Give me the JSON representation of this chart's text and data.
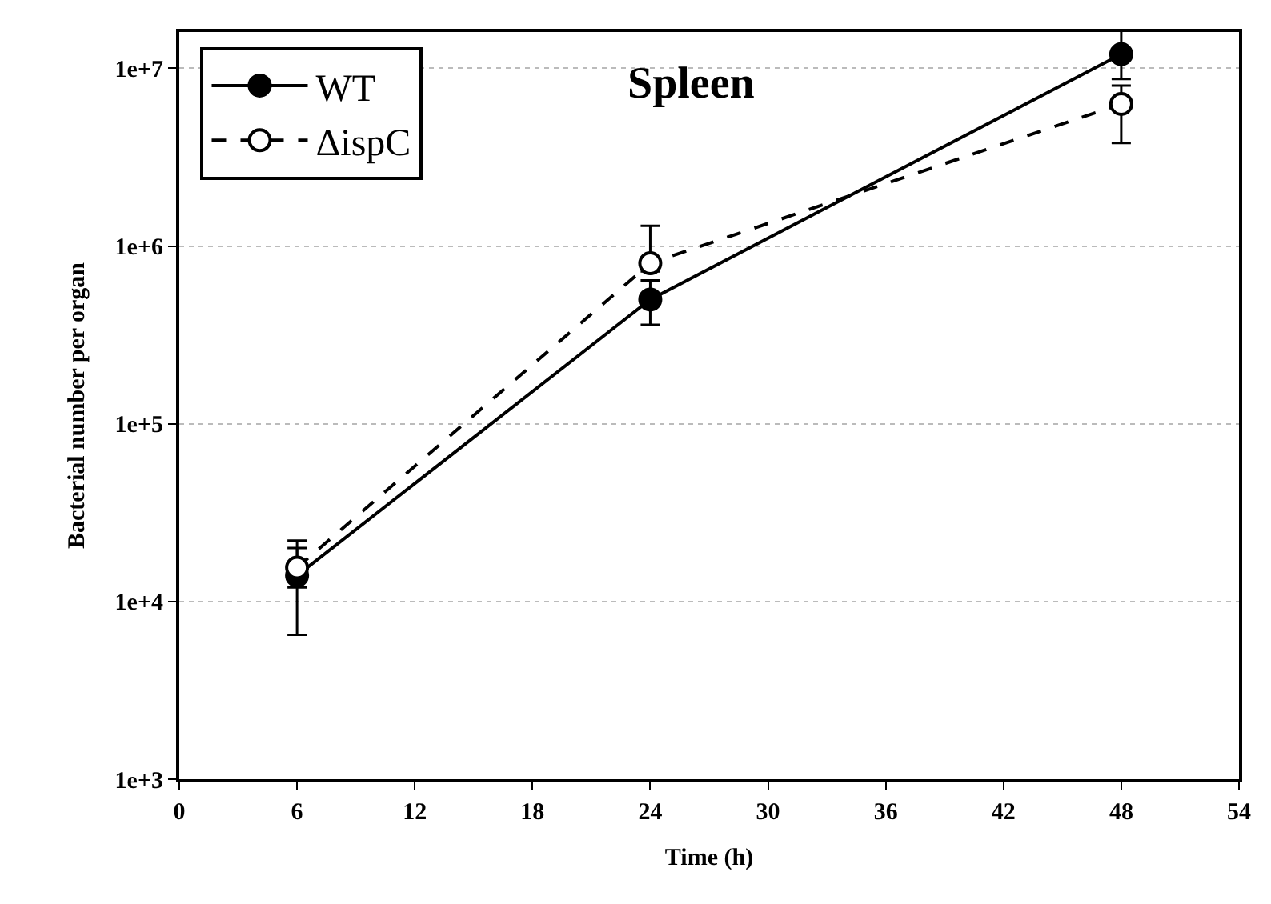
{
  "chart_data": {
    "type": "line",
    "xlabel": "Time (h)",
    "ylabel": "Bacterial number per organ",
    "x": [
      6,
      24,
      48
    ],
    "series": [
      {
        "name": "WT",
        "color": "#000000",
        "values": [
          14000,
          500000,
          12000000
        ],
        "errors": [
          [
            6500,
            22000
          ],
          [
            360000,
            640000
          ],
          [
            8700000,
            17000000
          ]
        ],
        "marker": "circle",
        "line_style": "solid"
      },
      {
        "name": "ΔispC",
        "color": "#000000",
        "values": [
          15500,
          800000,
          6300000
        ],
        "errors": [
          [
            12000,
            20000
          ],
          [
            720000,
            1300000
          ],
          [
            3800000,
            8000000
          ]
        ],
        "marker": "circle",
        "line_style": "dashed"
      }
    ],
    "log": "y",
    "xlim": [
      0,
      54
    ],
    "xticks": [
      0,
      6,
      12,
      18,
      24,
      30,
      36,
      42,
      48,
      54
    ],
    "ylim": [
      1000,
      16000000
    ],
    "yticks": [
      {
        "value": 1000,
        "label": "1e+3"
      },
      {
        "value": 10000,
        "label": "1e+4"
      },
      {
        "value": 100000,
        "label": "1e+5"
      },
      {
        "value": 1000000,
        "label": "1e+6"
      },
      {
        "value": 10000000,
        "label": "1e+7"
      }
    ],
    "grid": "y",
    "legend": "top left",
    "annotations": [
      "Spleen"
    ]
  }
}
